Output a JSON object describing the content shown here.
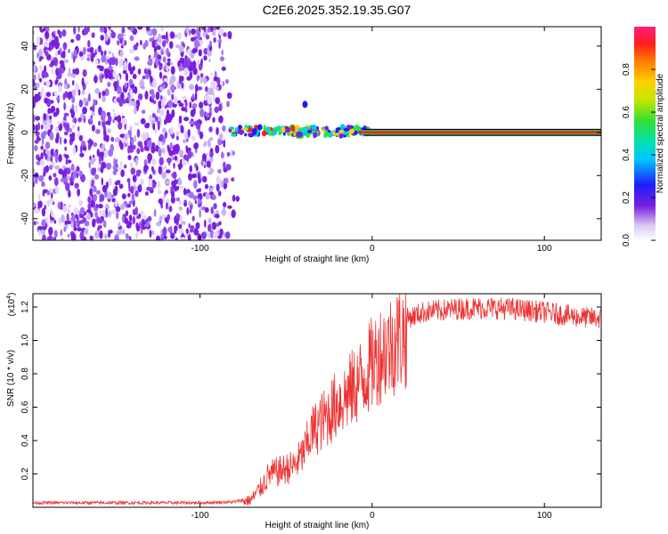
{
  "title": "C2E6.2025.352.19.35.G07",
  "colors": {
    "snr_line": "#ee3333",
    "spectrogram_noise": "#7a1fe0",
    "carrier_core": "#ee2222"
  },
  "chart_data": [
    {
      "type": "heatmap",
      "name": "spectrogram",
      "xlabel": "Height of straight line (km)",
      "ylabel": "Frequency (Hz)",
      "xlim": [
        -197,
        133
      ],
      "ylim": [
        -50,
        49
      ],
      "xticks": [
        {
          "value": -100,
          "label": "-100"
        },
        {
          "value": 0,
          "label": "0"
        },
        {
          "value": 100,
          "label": "100"
        }
      ],
      "yticks": [
        {
          "value": -40,
          "label": "-40"
        },
        {
          "value": -20,
          "label": "-20"
        },
        {
          "value": 0,
          "label": "0"
        },
        {
          "value": 20,
          "label": "20"
        },
        {
          "value": 40,
          "label": "40"
        }
      ],
      "noise_region_xmax": -77,
      "carrier_frequency": 0,
      "colorbar": {
        "label": "Normalized spectral amplitude",
        "range": [
          0,
          1
        ],
        "ticks": [
          {
            "value": 0.0,
            "label": "0.0"
          },
          {
            "value": 0.2,
            "label": "0.2"
          },
          {
            "value": 0.4,
            "label": "0.4"
          },
          {
            "value": 0.6,
            "label": "0.6"
          },
          {
            "value": 0.8,
            "label": "0.8"
          }
        ]
      }
    },
    {
      "type": "line",
      "name": "snr",
      "xlabel": "Height of straight line (km)",
      "ylabel": "SNR (10 * v/v)",
      "multiplier_label": "(x10",
      "multiplier_exponent": "4",
      "unit_scale": 10000,
      "xlim": [
        -197,
        133
      ],
      "ylim": [
        0,
        12800
      ],
      "xticks": [
        {
          "value": -100,
          "label": "-100"
        },
        {
          "value": 0,
          "label": "0"
        },
        {
          "value": 100,
          "label": "100"
        }
      ],
      "yticks": [
        {
          "value": 2000,
          "label": "0.2"
        },
        {
          "value": 4000,
          "label": "0.4"
        },
        {
          "value": 6000,
          "label": "0.6"
        },
        {
          "value": 8000,
          "label": "0.8"
        },
        {
          "value": 10000,
          "label": "1.0"
        },
        {
          "value": 12000,
          "label": "1.2"
        }
      ],
      "series": [
        {
          "name": "SNR",
          "x": [
            -197,
            -150,
            -100,
            -80,
            -70,
            -65,
            -60,
            -55,
            -50,
            -45,
            -40,
            -35,
            -30,
            -25,
            -20,
            -15,
            -10,
            -5,
            0,
            5,
            10,
            15,
            20,
            30,
            40,
            50,
            60,
            70,
            80,
            90,
            100,
            110,
            120,
            133
          ],
          "values": [
            300,
            300,
            300,
            350,
            600,
            1300,
            2200,
            2400,
            2600,
            2800,
            3600,
            5000,
            5600,
            6200,
            6900,
            7400,
            8000,
            8600,
            9500,
            10200,
            10600,
            11100,
            11500,
            11900,
            12000,
            12100,
            12150,
            12150,
            12100,
            12000,
            11900,
            11750,
            11600,
            11500
          ]
        }
      ]
    }
  ]
}
